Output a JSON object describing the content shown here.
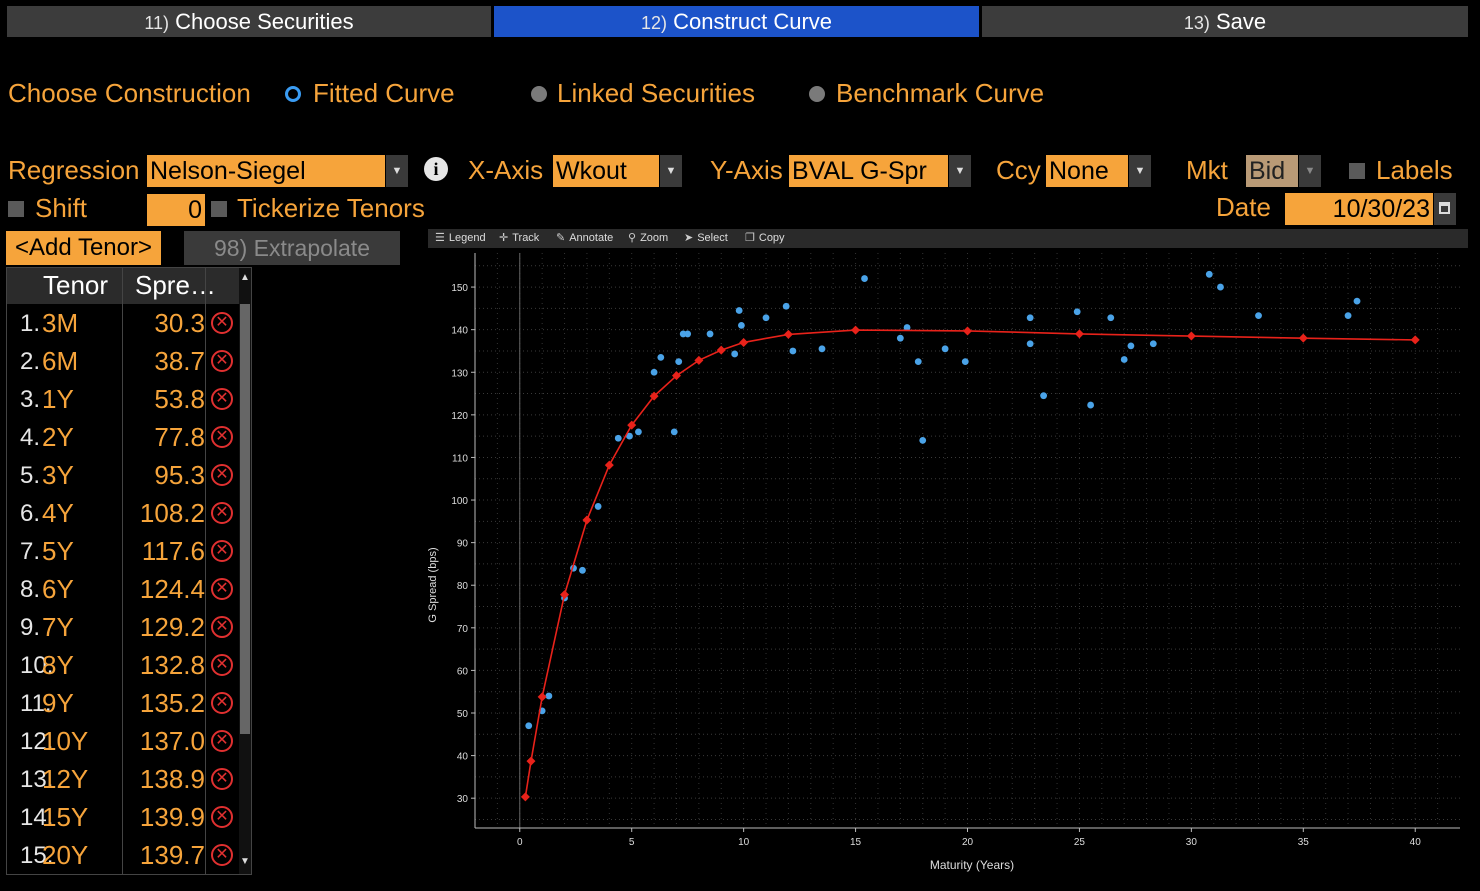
{
  "tabs": [
    {
      "num": "11)",
      "label": "Choose Securities"
    },
    {
      "num": "12)",
      "label": "Construct Curve"
    },
    {
      "num": "13)",
      "label": "Save"
    }
  ],
  "construction": {
    "label": "Choose Construction",
    "options": [
      "Fitted Curve",
      "Linked Securities",
      "Benchmark Curve"
    ],
    "selected": "Fitted Curve"
  },
  "controls": {
    "regression_label": "Regression",
    "regression_value": "Nelson-Siegel",
    "xaxis_label": "X-Axis",
    "xaxis_value": "Wkout",
    "yaxis_label": "Y-Axis",
    "yaxis_value": "BVAL G-Spr",
    "ccy_label": "Ccy",
    "ccy_value": "None",
    "mkt_label": "Mkt",
    "mkt_value": "Bid",
    "labels_label": "Labels",
    "shift_label": "Shift",
    "shift_value": "0",
    "tickerize_label": "Tickerize Tenors",
    "date_label": "Date",
    "date_value": "10/30/23",
    "add_tenor": "<Add Tenor>",
    "extrapolate": "98) Extrapolate"
  },
  "table": {
    "headers": [
      "Tenor",
      "Spre…"
    ],
    "rows": [
      {
        "num": "1.",
        "tenor": "3M",
        "spread": "30.3"
      },
      {
        "num": "2.",
        "tenor": "6M",
        "spread": "38.7"
      },
      {
        "num": "3.",
        "tenor": "1Y",
        "spread": "53.8"
      },
      {
        "num": "4.",
        "tenor": "2Y",
        "spread": "77.8"
      },
      {
        "num": "5.",
        "tenor": "3Y",
        "spread": "95.3"
      },
      {
        "num": "6.",
        "tenor": "4Y",
        "spread": "108.2"
      },
      {
        "num": "7.",
        "tenor": "5Y",
        "spread": "117.6"
      },
      {
        "num": "8.",
        "tenor": "6Y",
        "spread": "124.4"
      },
      {
        "num": "9.",
        "tenor": "7Y",
        "spread": "129.2"
      },
      {
        "num": "10.",
        "tenor": "8Y",
        "spread": "132.8"
      },
      {
        "num": "11.",
        "tenor": "9Y",
        "spread": "135.2"
      },
      {
        "num": "12.",
        "tenor": "10Y",
        "spread": "137.0"
      },
      {
        "num": "13.",
        "tenor": "12Y",
        "spread": "138.9"
      },
      {
        "num": "14.",
        "tenor": "15Y",
        "spread": "139.9"
      },
      {
        "num": "15.",
        "tenor": "20Y",
        "spread": "139.7"
      }
    ]
  },
  "chart_toolbar": [
    "Legend",
    "Track",
    "Annotate",
    "Zoom",
    "Select",
    "Copy"
  ],
  "chart_data": {
    "type": "scatter",
    "xlabel": "Maturity (Years)",
    "ylabel": "G Spread (bps)",
    "xlim": [
      -2,
      42
    ],
    "ylim": [
      23,
      158
    ],
    "xticks": [
      0,
      5,
      10,
      15,
      20,
      25,
      30,
      35,
      40
    ],
    "yticks": [
      30,
      40,
      50,
      60,
      70,
      80,
      90,
      100,
      110,
      120,
      130,
      140,
      150
    ],
    "grid": true,
    "colors": {
      "points": "#4aa3e8",
      "curve": "#e8221a"
    },
    "points": [
      [
        0.4,
        47
      ],
      [
        1.0,
        50.5
      ],
      [
        1.3,
        54
      ],
      [
        2.0,
        77
      ],
      [
        2.4,
        84
      ],
      [
        2.8,
        83.5
      ],
      [
        3.5,
        98.5
      ],
      [
        4.4,
        114.5
      ],
      [
        4.9,
        115
      ],
      [
        5.3,
        116
      ],
      [
        6.0,
        130
      ],
      [
        6.3,
        133.5
      ],
      [
        6.9,
        116
      ],
      [
        7.1,
        132.5
      ],
      [
        7.3,
        139
      ],
      [
        7.5,
        139
      ],
      [
        8.5,
        139
      ],
      [
        9.6,
        134.3
      ],
      [
        9.8,
        144.5
      ],
      [
        9.9,
        141
      ],
      [
        11.0,
        142.8
      ],
      [
        11.9,
        145.5
      ],
      [
        12.2,
        135
      ],
      [
        13.5,
        135.5
      ],
      [
        15.4,
        152
      ],
      [
        17.0,
        138
      ],
      [
        17.3,
        140.5
      ],
      [
        17.8,
        132.5
      ],
      [
        18.0,
        114
      ],
      [
        19.0,
        135.5
      ],
      [
        19.9,
        132.5
      ],
      [
        22.8,
        142.8
      ],
      [
        22.8,
        136.7
      ],
      [
        23.4,
        124.5
      ],
      [
        24.9,
        144.2
      ],
      [
        25.5,
        122.3
      ],
      [
        26.4,
        142.8
      ],
      [
        27.0,
        133
      ],
      [
        27.3,
        136.2
      ],
      [
        28.3,
        136.7
      ],
      [
        30.8,
        153
      ],
      [
        31.3,
        150
      ],
      [
        33.0,
        143.3
      ],
      [
        37.0,
        143.3
      ],
      [
        37.4,
        146.7
      ]
    ],
    "curve": [
      [
        0.25,
        30.3
      ],
      [
        0.5,
        38.7
      ],
      [
        1,
        53.8
      ],
      [
        2,
        77.8
      ],
      [
        3,
        95.3
      ],
      [
        4,
        108.2
      ],
      [
        5,
        117.6
      ],
      [
        6,
        124.4
      ],
      [
        7,
        129.2
      ],
      [
        8,
        132.8
      ],
      [
        9,
        135.2
      ],
      [
        10,
        137.0
      ],
      [
        12,
        138.9
      ],
      [
        15,
        139.9
      ],
      [
        20,
        139.7
      ],
      [
        25,
        139.0
      ],
      [
        30,
        138.5
      ],
      [
        35,
        138.0
      ],
      [
        40,
        137.6
      ]
    ]
  }
}
